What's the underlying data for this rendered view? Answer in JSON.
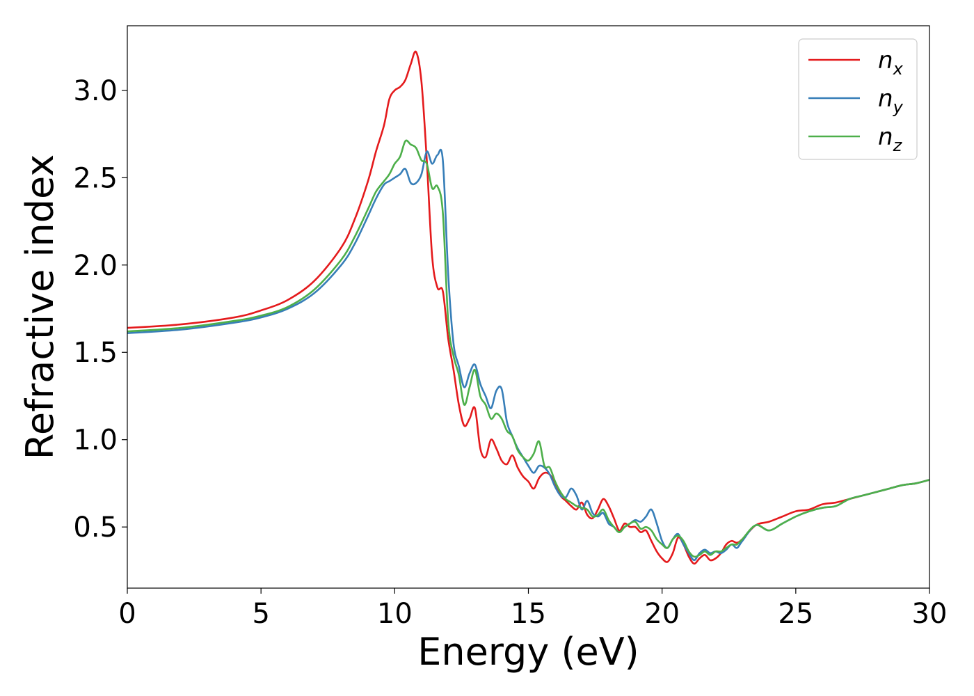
{
  "chart_data": {
    "type": "line",
    "xlabel": "Energy (eV)",
    "ylabel": "Refractive index",
    "xlim": [
      0,
      30
    ],
    "ylim": [
      0.15,
      3.37
    ],
    "xticks": [
      0,
      5,
      10,
      15,
      20,
      25,
      30
    ],
    "yticks": [
      0.5,
      1.0,
      1.5,
      2.0,
      2.5,
      3.0
    ],
    "xtick_labels": [
      "0",
      "5",
      "10",
      "15",
      "20",
      "25",
      "30"
    ],
    "ytick_labels": [
      "0.5",
      "1.0",
      "1.5",
      "2.0",
      "2.5",
      "3.0"
    ],
    "grid": false,
    "legend_position": "top-right",
    "series": [
      {
        "name": "n",
        "subscript": "x",
        "color": "#e41a1c",
        "x": [
          0,
          2,
          4,
          5,
          6,
          7,
          8,
          8.5,
          9,
          9.3,
          9.6,
          9.8,
          10.0,
          10.2,
          10.4,
          10.6,
          10.8,
          11.0,
          11.2,
          11.4,
          11.6,
          11.8,
          12.0,
          12.2,
          12.4,
          12.6,
          12.8,
          13.0,
          13.2,
          13.4,
          13.6,
          13.8,
          14.0,
          14.2,
          14.4,
          14.6,
          14.8,
          15.0,
          15.2,
          15.4,
          15.6,
          15.8,
          16.0,
          16.2,
          16.4,
          16.6,
          16.8,
          17.0,
          17.2,
          17.4,
          17.6,
          17.8,
          18.0,
          18.2,
          18.4,
          18.6,
          18.8,
          19.0,
          19.2,
          19.4,
          19.6,
          19.8,
          20.0,
          20.2,
          20.4,
          20.6,
          20.8,
          21.0,
          21.2,
          21.4,
          21.6,
          21.8,
          22.0,
          22.2,
          22.4,
          22.6,
          22.8,
          23.0,
          23.5,
          24.0,
          24.5,
          25.0,
          25.5,
          26.0,
          26.5,
          27.0,
          27.5,
          28.0,
          28.5,
          29.0,
          29.5,
          30.0
        ],
        "y": [
          1.64,
          1.66,
          1.7,
          1.74,
          1.8,
          1.91,
          2.1,
          2.26,
          2.48,
          2.65,
          2.8,
          2.95,
          3.0,
          3.02,
          3.06,
          3.15,
          3.22,
          3.05,
          2.6,
          2.05,
          1.87,
          1.85,
          1.58,
          1.4,
          1.2,
          1.08,
          1.12,
          1.18,
          0.95,
          0.9,
          1.0,
          0.95,
          0.88,
          0.86,
          0.91,
          0.84,
          0.79,
          0.76,
          0.72,
          0.78,
          0.81,
          0.8,
          0.75,
          0.68,
          0.65,
          0.62,
          0.6,
          0.64,
          0.57,
          0.55,
          0.6,
          0.66,
          0.62,
          0.55,
          0.48,
          0.52,
          0.5,
          0.5,
          0.47,
          0.48,
          0.42,
          0.36,
          0.32,
          0.3,
          0.35,
          0.44,
          0.4,
          0.33,
          0.29,
          0.32,
          0.34,
          0.31,
          0.32,
          0.35,
          0.4,
          0.42,
          0.41,
          0.43,
          0.51,
          0.53,
          0.56,
          0.59,
          0.6,
          0.63,
          0.64,
          0.66,
          0.68,
          0.7,
          0.72,
          0.74,
          0.75,
          0.77
        ]
      },
      {
        "name": "n",
        "subscript": "y",
        "color": "#377eb8",
        "x": [
          0,
          2,
          4,
          5,
          6,
          7,
          8,
          8.5,
          9,
          9.3,
          9.6,
          9.8,
          10.0,
          10.2,
          10.4,
          10.6,
          10.8,
          11.0,
          11.2,
          11.4,
          11.6,
          11.8,
          12.0,
          12.2,
          12.4,
          12.6,
          12.8,
          13.0,
          13.2,
          13.4,
          13.6,
          13.8,
          14.0,
          14.2,
          14.4,
          14.6,
          14.8,
          15.0,
          15.2,
          15.4,
          15.6,
          15.8,
          16.0,
          16.2,
          16.4,
          16.6,
          16.8,
          17.0,
          17.2,
          17.4,
          17.6,
          17.8,
          18.0,
          18.2,
          18.4,
          18.6,
          18.8,
          19.0,
          19.2,
          19.4,
          19.6,
          19.8,
          20.0,
          20.2,
          20.4,
          20.6,
          20.8,
          21.0,
          21.2,
          21.4,
          21.6,
          21.8,
          22.0,
          22.2,
          22.4,
          22.6,
          22.8,
          23.0,
          23.5,
          24.0,
          24.5,
          25.0,
          25.5,
          26.0,
          26.5,
          27.0,
          27.5,
          28.0,
          28.5,
          29.0,
          29.5,
          30.0
        ],
        "y": [
          1.61,
          1.63,
          1.67,
          1.7,
          1.75,
          1.84,
          2.0,
          2.12,
          2.28,
          2.38,
          2.46,
          2.48,
          2.5,
          2.52,
          2.55,
          2.47,
          2.47,
          2.52,
          2.65,
          2.58,
          2.63,
          2.6,
          1.95,
          1.55,
          1.42,
          1.3,
          1.38,
          1.43,
          1.32,
          1.25,
          1.18,
          1.28,
          1.29,
          1.1,
          1.02,
          0.95,
          0.9,
          0.85,
          0.81,
          0.85,
          0.84,
          0.8,
          0.73,
          0.68,
          0.67,
          0.72,
          0.68,
          0.6,
          0.65,
          0.58,
          0.56,
          0.58,
          0.52,
          0.5,
          0.47,
          0.5,
          0.52,
          0.54,
          0.53,
          0.56,
          0.6,
          0.52,
          0.42,
          0.38,
          0.43,
          0.46,
          0.4,
          0.35,
          0.31,
          0.35,
          0.37,
          0.35,
          0.36,
          0.35,
          0.37,
          0.4,
          0.38,
          0.42,
          0.51,
          0.48,
          0.52,
          0.56,
          0.59,
          0.61,
          0.62,
          0.66,
          0.68,
          0.7,
          0.72,
          0.74,
          0.75,
          0.77
        ]
      },
      {
        "name": "n",
        "subscript": "z",
        "color": "#4daf4a",
        "x": [
          0,
          2,
          4,
          5,
          6,
          7,
          8,
          8.5,
          9,
          9.3,
          9.6,
          9.8,
          10.0,
          10.2,
          10.4,
          10.6,
          10.8,
          11.0,
          11.2,
          11.4,
          11.6,
          11.8,
          12.0,
          12.2,
          12.4,
          12.6,
          12.8,
          13.0,
          13.2,
          13.4,
          13.6,
          13.8,
          14.0,
          14.2,
          14.4,
          14.6,
          14.8,
          15.0,
          15.2,
          15.4,
          15.6,
          15.8,
          16.0,
          16.2,
          16.4,
          16.6,
          16.8,
          17.0,
          17.2,
          17.4,
          17.6,
          17.8,
          18.0,
          18.2,
          18.4,
          18.6,
          18.8,
          19.0,
          19.2,
          19.4,
          19.6,
          19.8,
          20.0,
          20.2,
          20.4,
          20.6,
          20.8,
          21.0,
          21.2,
          21.4,
          21.6,
          21.8,
          22.0,
          22.2,
          22.4,
          22.6,
          22.8,
          23.0,
          23.5,
          24.0,
          24.5,
          25.0,
          25.5,
          26.0,
          26.5,
          27.0,
          27.5,
          28.0,
          28.5,
          29.0,
          29.5,
          30.0
        ],
        "y": [
          1.62,
          1.64,
          1.68,
          1.71,
          1.76,
          1.86,
          2.03,
          2.16,
          2.32,
          2.42,
          2.48,
          2.52,
          2.58,
          2.62,
          2.71,
          2.69,
          2.67,
          2.6,
          2.58,
          2.44,
          2.45,
          2.3,
          1.68,
          1.48,
          1.37,
          1.2,
          1.3,
          1.4,
          1.25,
          1.2,
          1.12,
          1.15,
          1.12,
          1.05,
          1.02,
          0.94,
          0.9,
          0.88,
          0.92,
          0.99,
          0.85,
          0.84,
          0.76,
          0.7,
          0.66,
          0.64,
          0.62,
          0.61,
          0.6,
          0.56,
          0.57,
          0.6,
          0.54,
          0.5,
          0.47,
          0.5,
          0.52,
          0.53,
          0.49,
          0.5,
          0.48,
          0.43,
          0.4,
          0.38,
          0.43,
          0.45,
          0.42,
          0.36,
          0.33,
          0.34,
          0.36,
          0.34,
          0.36,
          0.36,
          0.38,
          0.4,
          0.4,
          0.43,
          0.51,
          0.48,
          0.52,
          0.56,
          0.59,
          0.61,
          0.62,
          0.66,
          0.68,
          0.7,
          0.72,
          0.74,
          0.75,
          0.77
        ]
      }
    ]
  }
}
